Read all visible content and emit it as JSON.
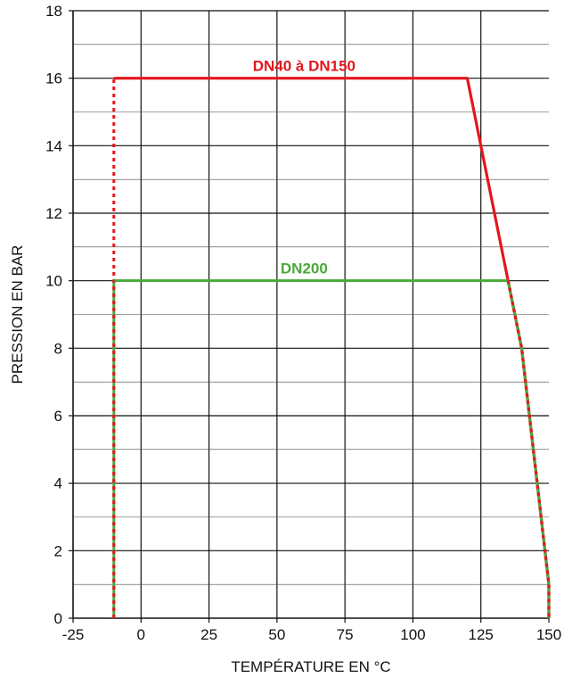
{
  "chart_data": {
    "type": "line",
    "title": "",
    "xlabel": "TEMPÉRATURE EN °C",
    "ylabel": "PRESSION EN BAR",
    "xlim": [
      -25,
      150
    ],
    "ylim": [
      0,
      18
    ],
    "x_ticks": [
      "-25",
      "0",
      "25",
      "50",
      "75",
      "100",
      "125",
      "150"
    ],
    "y_ticks": [
      "0",
      "2",
      "4",
      "6",
      "8",
      "10",
      "12",
      "14",
      "16",
      "18"
    ],
    "grid": true,
    "series": [
      {
        "name": "DN40 à DN150",
        "color": "#e3161e",
        "points": [
          [
            -10,
            16
          ],
          [
            120,
            16
          ],
          [
            135,
            10
          ],
          [
            140,
            8
          ],
          [
            150,
            1
          ],
          [
            150,
            0
          ]
        ],
        "dotted_limit": [
          [
            -10,
            0
          ],
          [
            -10,
            16
          ]
        ]
      },
      {
        "name": "DN200",
        "color": "#4aa83a",
        "points": [
          [
            -10,
            10
          ],
          [
            135,
            10
          ],
          [
            140,
            8
          ],
          [
            150,
            1
          ],
          [
            150,
            0
          ]
        ],
        "dotted_limit": [
          [
            -10,
            0
          ],
          [
            -10,
            10
          ]
        ]
      }
    ],
    "annotations": [
      {
        "text": "DN40 à DN150",
        "x": 60,
        "y": 16
      },
      {
        "text": "DN200",
        "x": 60,
        "y": 10
      }
    ]
  }
}
